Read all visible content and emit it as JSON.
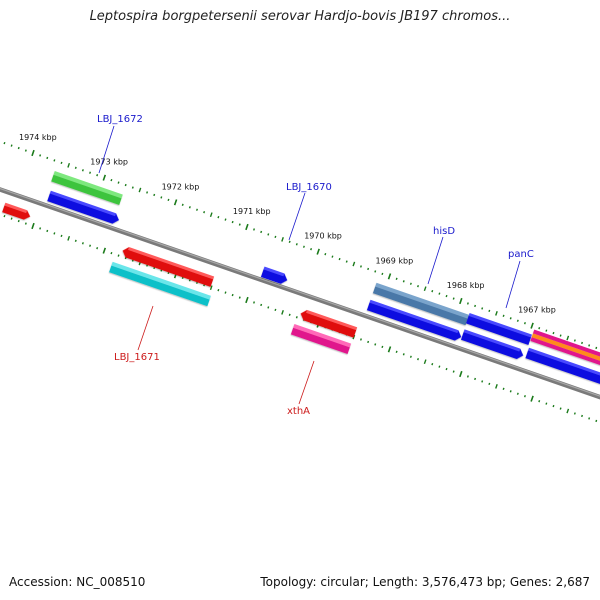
{
  "title": "Leptospira borgpetersenii serovar Hardjo-bovis JB197 chromos...",
  "footer": {
    "accession": "Accession: NC_008510",
    "summary": "Topology: circular; Length: 3,576,473 bp; Genes: 2,687"
  },
  "colors": {
    "backbone": "#808080",
    "tick": "#1a7a1a",
    "label_forward": "#1a1acc",
    "label_reverse": "#cc1a1a"
  },
  "scale": {
    "unit": "kbp",
    "major_ticks": [
      {
        "kbp": 1974,
        "label": "1974 kbp"
      },
      {
        "kbp": 1973,
        "label": "1973 kbp"
      },
      {
        "kbp": 1972,
        "label": "1972 kbp"
      },
      {
        "kbp": 1971,
        "label": "1971 kbp"
      },
      {
        "kbp": 1970,
        "label": "1970 kbp"
      },
      {
        "kbp": 1969,
        "label": "1969 kbp"
      },
      {
        "kbp": 1968,
        "label": "1968 kbp"
      },
      {
        "kbp": 1967,
        "label": "1967 kbp"
      }
    ]
  },
  "gene_labels": [
    {
      "name": "LBJ_1672",
      "strand": "forward"
    },
    {
      "name": "LBJ_1670",
      "strand": "forward"
    },
    {
      "name": "hisD",
      "strand": "forward"
    },
    {
      "name": "panC",
      "strand": "forward"
    },
    {
      "name": "LBJ_1671",
      "strand": "reverse"
    },
    {
      "name": "xthA",
      "strand": "reverse"
    }
  ]
}
